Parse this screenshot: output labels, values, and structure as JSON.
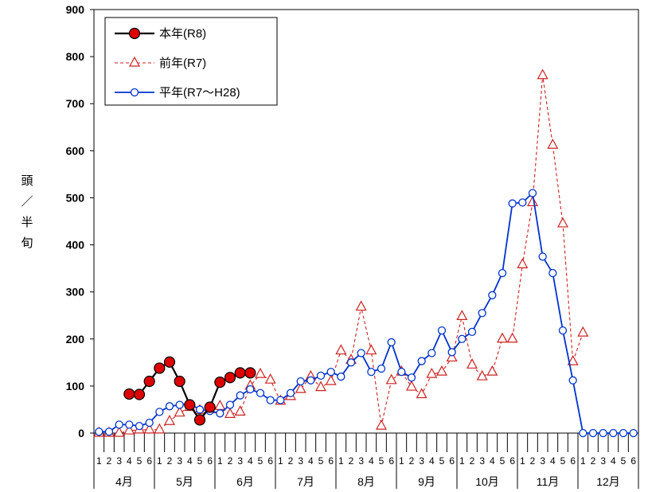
{
  "chart_data": {
    "type": "line",
    "ylabel": "頭／半旬",
    "ylabel_chars": [
      "頭",
      "／",
      "半",
      "旬"
    ],
    "ylim": [
      0,
      900
    ],
    "yticks": [
      0,
      100,
      200,
      300,
      400,
      500,
      600,
      700,
      800,
      900
    ],
    "grid": false,
    "legend_position": "top-left",
    "months": [
      "4月",
      "5月",
      "6月",
      "7月",
      "8月",
      "9月",
      "10月",
      "11月",
      "12月"
    ],
    "pentad_labels": [
      "1",
      "2",
      "3",
      "4",
      "5",
      "6"
    ],
    "series": [
      {
        "name": "本年(R8)",
        "color": "#000000",
        "marker_fill": "#dd0000",
        "marker": "filled-circle",
        "line_style": "solid",
        "values": [
          null,
          null,
          null,
          83,
          82,
          110,
          138,
          151,
          110,
          60,
          28,
          55,
          108,
          118,
          128,
          128,
          null,
          null,
          null,
          null,
          null,
          null,
          null,
          null,
          null,
          null,
          null,
          null,
          null,
          null,
          null,
          null,
          null,
          null,
          null,
          null,
          null,
          null,
          null,
          null,
          null,
          null,
          null,
          null,
          null,
          null,
          null,
          null,
          null,
          null,
          null,
          null,
          null,
          null
        ]
      },
      {
        "name": "前年(R7)",
        "color": "#cc2222",
        "marker": "open-triangle",
        "line_style": "dashed",
        "values": [
          0,
          0,
          0,
          5,
          7,
          7,
          7,
          25,
          43,
          55,
          48,
          50,
          57,
          40,
          45,
          100,
          125,
          113,
          68,
          78,
          93,
          120,
          97,
          110,
          175,
          155,
          268,
          175,
          15,
          112,
          130,
          98,
          82,
          125,
          130,
          160,
          248,
          145,
          120,
          130,
          200,
          200,
          358,
          490,
          760,
          612,
          445,
          152,
          213,
          null,
          null,
          null,
          null,
          null
        ]
      },
      {
        "name": "平年(R7〜H28)",
        "color": "#0033cc",
        "marker": "open-circle",
        "line_style": "solid",
        "values": [
          3,
          3,
          18,
          18,
          15,
          22,
          45,
          57,
          60,
          62,
          50,
          47,
          42,
          60,
          80,
          93,
          85,
          70,
          70,
          85,
          110,
          112,
          122,
          130,
          120,
          150,
          170,
          130,
          137,
          193,
          130,
          118,
          153,
          170,
          218,
          172,
          200,
          215,
          255,
          293,
          340,
          488,
          490,
          510,
          375,
          340,
          218,
          112,
          0,
          0,
          0,
          0,
          0,
          0
        ]
      }
    ]
  }
}
